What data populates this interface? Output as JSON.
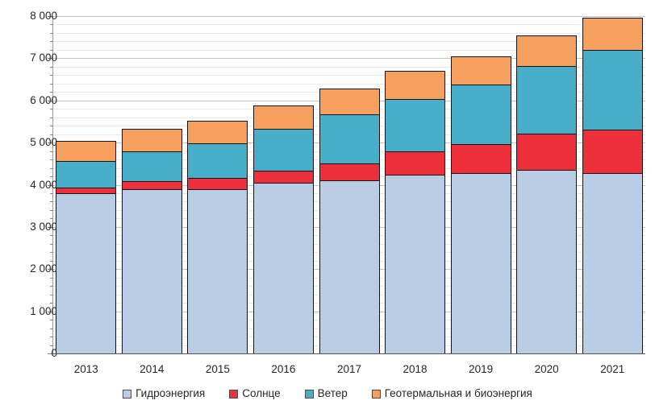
{
  "chart_data": {
    "type": "bar",
    "stacked": true,
    "title": "",
    "xlabel": "",
    "ylabel": "",
    "categories": [
      "2013",
      "2014",
      "2015",
      "2016",
      "2017",
      "2018",
      "2019",
      "2020",
      "2021"
    ],
    "series": [
      {
        "name": "Гидроэнергия",
        "color": "#B9CDE4",
        "values": [
          3800,
          3890,
          3900,
          4050,
          4100,
          4230,
          4270,
          4350,
          4280
        ]
      },
      {
        "name": "Солнце",
        "color": "#EE303C",
        "values": [
          140,
          200,
          260,
          290,
          410,
          560,
          690,
          860,
          1030
        ]
      },
      {
        "name": "Ветер",
        "color": "#47ADC8",
        "values": [
          630,
          710,
          830,
          980,
          1170,
          1250,
          1420,
          1600,
          1880
        ]
      },
      {
        "name": "Геотермальная и биоэнергия",
        "color": "#F6A05F",
        "values": [
          480,
          520,
          530,
          560,
          600,
          660,
          670,
          730,
          770
        ]
      }
    ],
    "totals": [
      5050,
      5320,
      5520,
      5880,
      6280,
      6700,
      7050,
      7540,
      7960
    ],
    "ylim": [
      0,
      8000
    ],
    "y_major_step": 1000,
    "y_minor_step": 200,
    "y_tick_labels": [
      "0",
      "1 000",
      "2 000",
      "3 000",
      "4 000",
      "5 000",
      "6 000",
      "7 000",
      "8 000"
    ],
    "grid": "on",
    "legend_position": "bottom"
  },
  "styles": {
    "background": "#FFFFFF",
    "grid_major_color": "#C3C3C3",
    "grid_minor_color": "#E9E9E9",
    "axis_line_color": "#555555",
    "tick_color": "#7F7F7F",
    "text_color": "#262626",
    "bar_border_color": "#141414"
  }
}
